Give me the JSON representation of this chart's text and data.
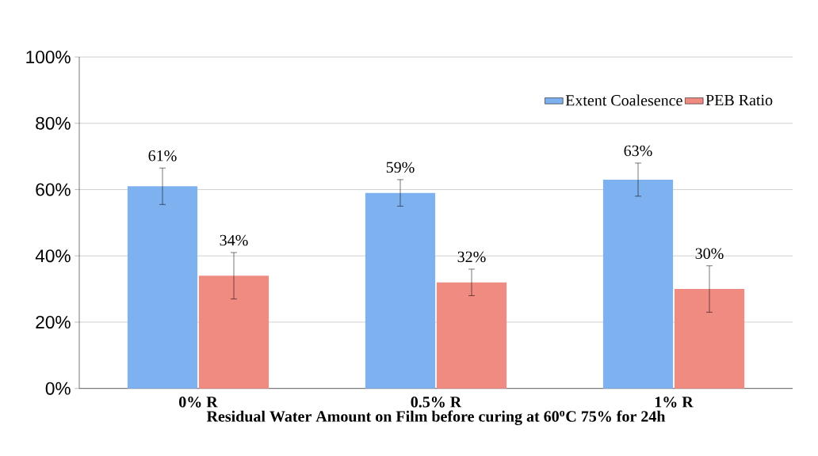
{
  "chart_data": {
    "type": "bar",
    "xlabel": "Residual Water Amount on Film before curing at 60$^{o}$C 75% for 24h",
    "categories": [
      "0% R",
      "0.5% R",
      "1% R"
    ],
    "series": [
      {
        "name": "Extent Coalesence",
        "color": "#7eb1ef",
        "values": [
          61,
          59,
          63
        ],
        "errors": [
          5.5,
          4,
          5
        ],
        "value_labels": [
          "61%",
          "59%",
          "63%"
        ]
      },
      {
        "name": "PEB Ratio",
        "color": "#f08b82",
        "values": [
          34,
          32,
          30
        ],
        "errors": [
          7,
          4,
          7
        ],
        "value_labels": [
          "34%",
          "32%",
          "30%"
        ]
      }
    ],
    "ylim": [
      0,
      100
    ],
    "yticks": [
      {
        "value": 0,
        "label": "0%"
      },
      {
        "value": 20,
        "label": "20%"
      },
      {
        "value": 40,
        "label": "40%"
      },
      {
        "value": 60,
        "label": "60%"
      },
      {
        "value": 80,
        "label": "80%"
      },
      {
        "value": 100,
        "label": "100%"
      }
    ],
    "grid": "y",
    "legend": "top right"
  }
}
